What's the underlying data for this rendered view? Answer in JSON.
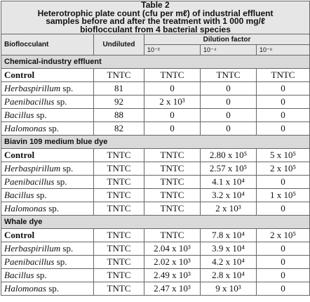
{
  "title_lines": [
    "Table 2",
    "Heterotrophic plate count (cfu per mℓ) of industrial effluent",
    "samples before and after the treatment with 1 000 mg/ℓ",
    "bioflocculant from 4 bacterial species"
  ],
  "header": {
    "bioflocculant": "Bioflocculant",
    "undiluted": "Undiluted",
    "dilution_factor": "Dilution factor",
    "dilutions": [
      "10⁻²",
      "10⁻⁴",
      "10⁻⁶"
    ]
  },
  "sections": [
    {
      "name": "Chemical-industry effluent",
      "rows": [
        {
          "name": "Control",
          "counts": [
            "TNTC",
            "TNTC",
            "TNTC",
            "TNTC"
          ]
        },
        {
          "name": "Herbaspirillum",
          "qualifier": "sp.",
          "counts": [
            81,
            0,
            0,
            0
          ]
        },
        {
          "name": "Paenibacillus",
          "qualifier": "sp.",
          "counts": [
            92,
            "2 x 10³",
            0,
            0
          ]
        },
        {
          "name": "Bacillus",
          "qualifier": "sp.",
          "counts": [
            88,
            0,
            0,
            0
          ]
        },
        {
          "name": "Halomonas",
          "qualifier": "sp.",
          "counts": [
            82,
            0,
            0,
            0
          ]
        }
      ]
    },
    {
      "name": "Biavin 109 medium blue dye",
      "rows": [
        {
          "name": "Control",
          "counts": [
            "TNTC",
            "TNTC",
            "2.80 x 10⁵",
            "5 x 10⁵"
          ]
        },
        {
          "name": "Herbaspirillum",
          "qualifier": "sp.",
          "counts": [
            "TNTC",
            "TNTC",
            "2.57 x 10⁵",
            "2 x 10⁵"
          ]
        },
        {
          "name": "Paenibacillus",
          "qualifier": "sp.",
          "counts": [
            "TNTC",
            "TNTC",
            "4.1 x 10⁴",
            0
          ]
        },
        {
          "name": "Bacillus",
          "qualifier": "sp.",
          "counts": [
            "TNTC",
            "TNTC",
            "3.2 x 10⁴",
            "1 x 10⁵"
          ]
        },
        {
          "name": "Halomonas",
          "qualifier": "sp.",
          "counts": [
            "TNTC",
            "TNTC",
            "2 x 10³",
            0
          ]
        }
      ]
    },
    {
      "name": "Whale dye",
      "rows": [
        {
          "name": "Control",
          "counts": [
            "TNTC",
            "TNTC",
            "7.8 x 10⁴",
            "2 x 10⁵"
          ]
        },
        {
          "name": "Herbaspirillum",
          "qualifier": "sp.",
          "counts": [
            "TNTC",
            "2.04 x 10³",
            "3.9 x 10⁴",
            0
          ]
        },
        {
          "name": "Paenibacillus",
          "qualifier": "sp.",
          "counts": [
            "TNTC",
            "2.02 x 10³",
            "4.2 x 10⁴",
            0
          ]
        },
        {
          "name": "Bacillus",
          "qualifier": "sp.",
          "counts": [
            "TNTC",
            "2.49 x 10³",
            "2.8 x 10⁴",
            0
          ]
        },
        {
          "name": "Halomonas",
          "qualifier": "sp.",
          "counts": [
            "TNTC",
            "2.47 x 10³",
            "9 x 10³",
            0
          ]
        }
      ]
    }
  ]
}
